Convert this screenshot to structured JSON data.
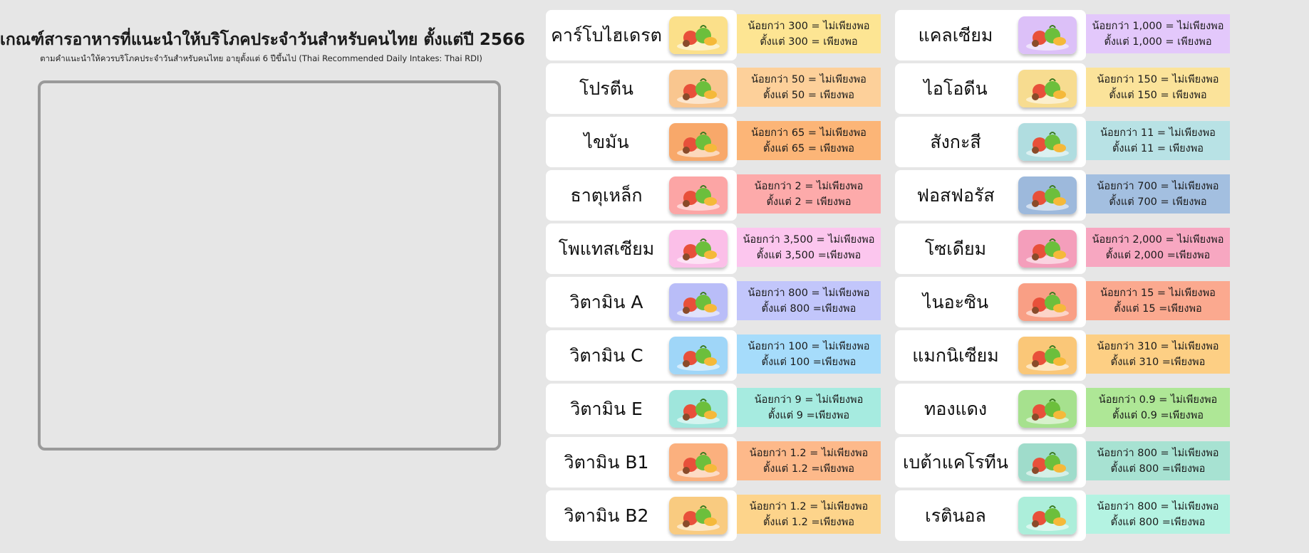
{
  "header": {
    "title": "เกณฑ์สารอาหารที่แนะนำให้บริโภคประจำวันสำหรับคนไทย ตั้งแต่ปี 2566",
    "subtitle": "ตามคำแนะนำให้ควรบริโภคประจำวันสำหรับคนไทย อายุตั้งแต่ 6 ปีขึ้นไป (Thai Recommended Daily Intakes: Thai RDI)"
  },
  "nutrients_left": [
    {
      "name": "คาร์โบไฮเดรต",
      "line1": "น้อยกว่า 300 = ไม่เพียงพอ",
      "line2": "ตั้งแต่ 300 = เพียงพอ",
      "color": "#fde593",
      "thumb": "#fbe08a",
      "icon": "grains-icon"
    },
    {
      "name": "โปรตีน",
      "line1": "น้อยกว่า 50 = ไม่เพียงพอ",
      "line2": "ตั้งแต่ 50 = เพียงพอ",
      "color": "#fdd09a",
      "thumb": "#f9c68f",
      "icon": "meat-fish-icon"
    },
    {
      "name": "ไขมัน",
      "line1": "น้อยกว่า 65 = ไม่เพียงพอ",
      "line2": "ตั้งแต่ 65 = เพียงพอ",
      "color": "#fcb577",
      "thumb": "#f8a86a",
      "icon": "oil-avocado-icon"
    },
    {
      "name": "ธาตุเหล็ก",
      "line1": "น้อยกว่า 2 = ไม่เพียงพอ",
      "line2": "ตั้งแต่ 2 = เพียงพอ",
      "color": "#fdaaaa",
      "thumb": "#fca5a5",
      "icon": "red-meat-icon"
    },
    {
      "name": "โพแทสเซียม",
      "line1": "น้อยกว่า 3,500 = ไม่เพียงพอ",
      "line2": "ตั้งแต่ 3,500 =เพียงพอ",
      "color": "#fcc6ee",
      "thumb": "#fbbfe8",
      "icon": "banana-avocado-icon"
    },
    {
      "name": "วิตามิน A",
      "line1": "น้อยกว่า 800 = ไม่เพียงพอ",
      "line2": "ตั้งแต่ 800 =เพียงพอ",
      "color": "#c2c6fb",
      "thumb": "#b9bdf8",
      "icon": "carrot-fruit-icon"
    },
    {
      "name": "วิตามิน C",
      "line1": "น้อยกว่า 100 = ไม่เพียงพอ",
      "line2": "ตั้งแต่ 100 =เพียงพอ",
      "color": "#a6dcfb",
      "thumb": "#9fd6f8",
      "icon": "citrus-melon-icon"
    },
    {
      "name": "วิตามิน E",
      "line1": "น้อยกว่า 9 = ไม่เพียงพอ",
      "line2": "ตั้งแต่ 9 =เพียงพอ",
      "color": "#a6ebe0",
      "thumb": "#9fe6dc",
      "icon": "greens-oil-icon"
    },
    {
      "name": "วิตามิน B1",
      "line1": "น้อยกว่า 1.2 = ไม่เพียงพอ",
      "line2": "ตั้งแต่ 1.2 =เพียงพอ",
      "color": "#fdb98a",
      "thumb": "#fbb07e",
      "icon": "grain-fish-icon"
    },
    {
      "name": "วิตามิน B2",
      "line1": "น้อยกว่า 1.2 = ไม่เพียงพอ",
      "line2": "ตั้งแต่ 1.2 =เพียงพอ",
      "color": "#fdd48b",
      "thumb": "#f9cb80",
      "icon": "seafood-veg-icon"
    }
  ],
  "nutrients_right": [
    {
      "name": "แคลเซียม",
      "line1": "น้อยกว่า 1,000 = ไม่เพียงพอ",
      "line2": "ตั้งแต่ 1,000 = เพียงพอ",
      "color": "#e3c8fb",
      "thumb": "#dcc0f8",
      "icon": "milk-greens-icon"
    },
    {
      "name": "ไอโอดีน",
      "line1": "น้อยกว่า 150 = ไม่เพียงพอ",
      "line2": "ตั้งแต่ 150 = เพียงพอ",
      "color": "#fbe39a",
      "thumb": "#f7dc90",
      "icon": "shrimp-fish-icon"
    },
    {
      "name": "สังกะสี",
      "line1": "น้อยกว่า 11 = ไม่เพียงพอ",
      "line2": "ตั้งแต่ 11 = เพียงพอ",
      "color": "#b8e2e5",
      "thumb": "#b0dde0",
      "icon": "pumpkin-icon"
    },
    {
      "name": "ฟอสฟอรัส",
      "line1": "น้อยกว่า 700 = ไม่เพียงพอ",
      "line2": "ตั้งแต่ 700 = เพียงพอ",
      "color": "#a3bfe0",
      "thumb": "#9db9dc",
      "icon": "nuts-dairy-icon"
    },
    {
      "name": "โซเดียม",
      "line1": "น้อยกว่า 2,000 = ไม่เพียงพอ",
      "line2": "ตั้งแต่ 2,000 =เพียงพอ",
      "color": "#f7a7c1",
      "thumb": "#f49ebb",
      "icon": "salt-meat-icon"
    },
    {
      "name": "ไนอะซิน",
      "line1": "น้อยกว่า 15 = ไม่เพียงพอ",
      "line2": "ตั้งแต่ 15 =เพียงพอ",
      "color": "#fba98f",
      "thumb": "#f99f85",
      "icon": "plum-carrot-icon"
    },
    {
      "name": "แมกนิเซียม",
      "line1": "น้อยกว่า 310 = ไม่เพียงพอ",
      "line2": "ตั้งแต่ 310 =เพียงพอ",
      "color": "#fdcf84",
      "thumb": "#fac778",
      "icon": "milk-meat-icon"
    },
    {
      "name": "ทองแดง",
      "line1": "น้อยกว่า 0.9 = ไม่เพียงพอ",
      "line2": "ตั้งแต่ 0.9 =เพียงพอ",
      "color": "#aee796",
      "thumb": "#a6e18e",
      "icon": "eggs-basket-icon"
    },
    {
      "name": "เบต้าแคโรทีน",
      "line1": "น้อยกว่า 800 = ไม่เพียงพอ",
      "line2": "ตั้งแต่ 800 =เพียงพอ",
      "color": "#a7e2d2",
      "thumb": "#9fdccb",
      "icon": "papaya-greens-icon"
    },
    {
      "name": "เรตินอล",
      "line1": "น้อยกว่า 800 = ไม่เพียงพอ",
      "line2": "ตั้งแต่ 800 =เพียงพอ",
      "color": "#b4f3e2",
      "thumb": "#aceeda",
      "icon": "watermelon-greens-icon"
    }
  ]
}
